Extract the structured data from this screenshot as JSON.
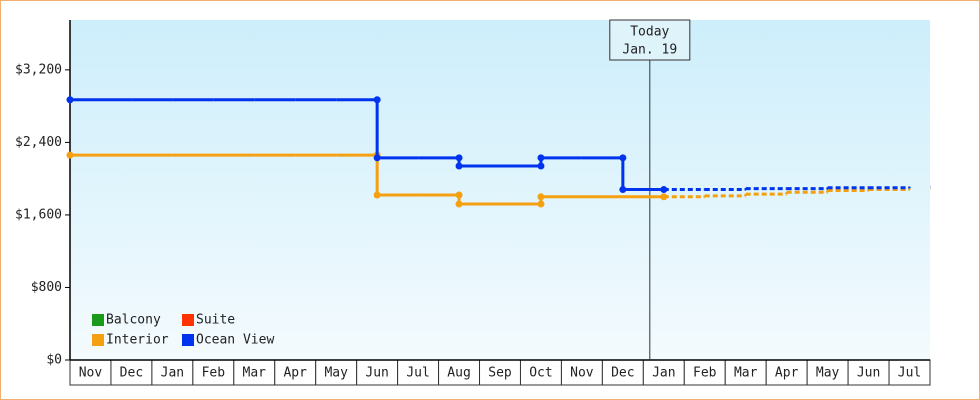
{
  "chart_data": {
    "type": "step-line",
    "categories": [
      "Nov",
      "Dec",
      "Jan",
      "Feb",
      "Mar",
      "Apr",
      "May",
      "Jun",
      "Jul",
      "Aug",
      "Sep",
      "Oct",
      "Nov",
      "Dec",
      "Jan",
      "Feb",
      "Mar",
      "Apr",
      "May",
      "Jun",
      "Jul"
    ],
    "series": [
      {
        "name": "Balcony",
        "color": "#1a9a1a",
        "values": [
          null,
          null,
          null,
          null,
          null,
          null,
          null,
          null,
          null,
          null,
          null,
          null,
          null,
          null,
          null,
          null,
          null,
          null,
          null,
          null,
          null
        ],
        "projected": [
          null,
          null,
          null,
          null,
          null,
          null,
          null,
          null,
          null,
          null,
          null,
          null,
          null,
          null,
          null,
          null,
          null,
          null,
          null,
          null,
          null
        ]
      },
      {
        "name": "Suite",
        "color": "#ff3300",
        "values": [
          null,
          null,
          null,
          null,
          null,
          null,
          null,
          null,
          null,
          null,
          null,
          null,
          null,
          null,
          null,
          null,
          null,
          null,
          null,
          null,
          null
        ],
        "projected": [
          null,
          null,
          null,
          null,
          null,
          null,
          null,
          null,
          null,
          null,
          null,
          null,
          null,
          null,
          null,
          null,
          null,
          null,
          null,
          null,
          null
        ]
      },
      {
        "name": "Interior",
        "color": "#f5a010",
        "values": [
          2260,
          2260,
          2260,
          2260,
          2260,
          2260,
          2260,
          1820,
          1820,
          1720,
          1720,
          1800,
          1800,
          1800,
          1800,
          null,
          null,
          null,
          null,
          null,
          null
        ],
        "projected": [
          null,
          null,
          null,
          null,
          null,
          null,
          null,
          null,
          null,
          null,
          null,
          null,
          null,
          null,
          1800,
          1810,
          1830,
          1850,
          1870,
          1880,
          1890
        ]
      },
      {
        "name": "Ocean View",
        "color": "#0033ee",
        "values": [
          2870,
          2870,
          2870,
          2870,
          2870,
          2870,
          2870,
          2230,
          2230,
          2140,
          2140,
          2230,
          2230,
          1880,
          1880,
          null,
          null,
          null,
          null,
          null,
          null
        ],
        "projected": [
          null,
          null,
          null,
          null,
          null,
          null,
          null,
          null,
          null,
          null,
          null,
          null,
          null,
          null,
          1880,
          1880,
          1890,
          1890,
          1900,
          1900,
          1910
        ]
      }
    ],
    "ylim": [
      0,
      3750
    ],
    "yticks": [
      {
        "value": 0,
        "label": "$0"
      },
      {
        "value": 800,
        "label": "$800"
      },
      {
        "value": 1600,
        "label": "$1,600"
      },
      {
        "value": 2400,
        "label": "$2,400"
      },
      {
        "value": 3200,
        "label": "$3,200"
      }
    ],
    "annotation": [
      "Today",
      "Jan. 19"
    ],
    "legend": "bottom-left"
  }
}
